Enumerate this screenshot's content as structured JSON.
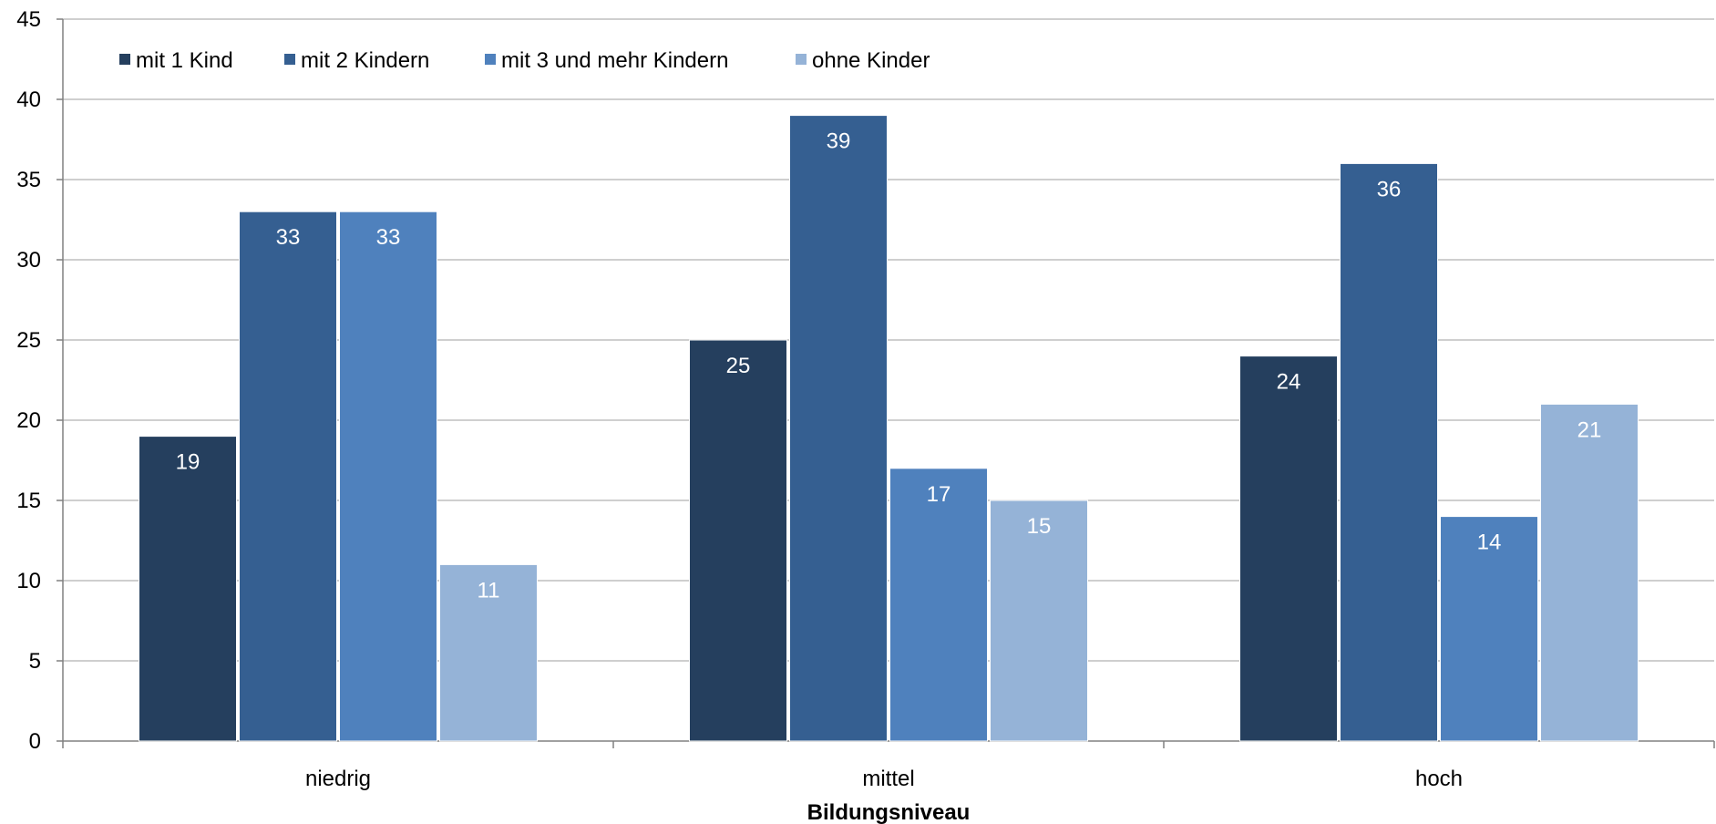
{
  "chart_data": {
    "type": "bar",
    "title": "",
    "xlabel": "Bildungsniveau",
    "ylabel": "",
    "ylim": [
      0,
      45
    ],
    "yticks": [
      0,
      5,
      10,
      15,
      20,
      25,
      30,
      35,
      40,
      45
    ],
    "grid": true,
    "legend_position": "top-left",
    "categories": [
      "niedrig",
      "mittel",
      "hoch"
    ],
    "series": [
      {
        "name": "mit 1 Kind",
        "color": "#253F5E",
        "values": [
          19,
          25,
          24
        ]
      },
      {
        "name": "mit 2 Kindern",
        "color": "#355F91",
        "values": [
          33,
          39,
          36
        ]
      },
      {
        "name": "mit 3 und mehr Kindern",
        "color": "#4F81BD",
        "values": [
          33,
          17,
          14
        ]
      },
      {
        "name": "ohne Kinder",
        "color": "#95B3D7",
        "values": [
          11,
          15,
          21
        ]
      }
    ]
  }
}
